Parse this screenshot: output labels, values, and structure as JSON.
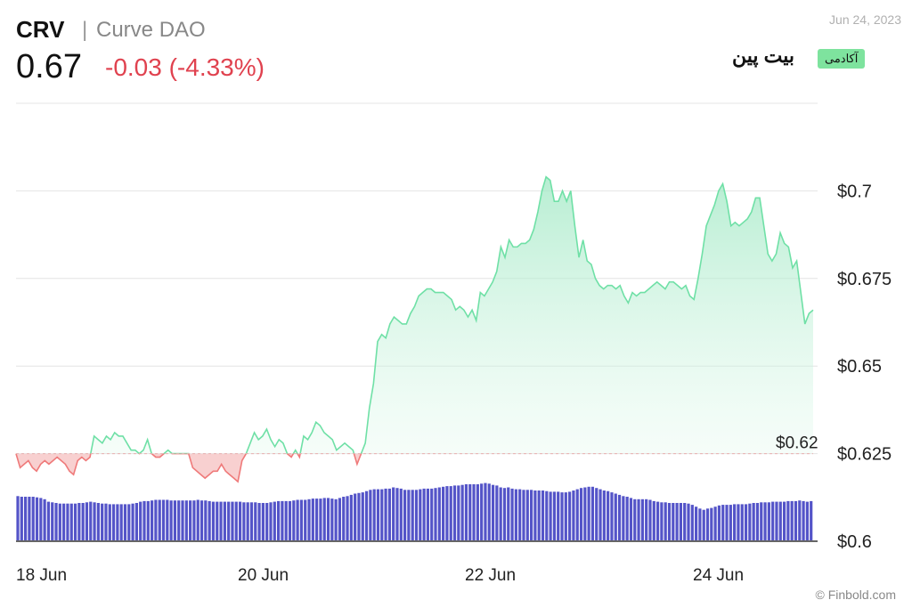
{
  "header": {
    "ticker": "CRV",
    "separator": "|",
    "name": "Curve DAO",
    "price": "0.67",
    "change": "-0.03 (-4.33%)",
    "date": "Jun 24, 2023"
  },
  "watermark": {
    "logo": "بیت پین",
    "badge": "آکادمی"
  },
  "credit": "© Finbold.com",
  "chart_data": {
    "type": "area",
    "x_tick_labels": [
      "18 Jun",
      "20 Jun",
      "22 Jun",
      "24 Jun"
    ],
    "y_tick_labels": [
      "$0.7",
      "$0.675",
      "$0.65",
      "$0.625",
      "$0.6"
    ],
    "y_ticks": [
      0.7,
      0.675,
      0.65,
      0.625,
      0.6
    ],
    "ylim": [
      0.6,
      0.725
    ],
    "baseline": 0.625,
    "baseline_label": "$0.62",
    "grid": true,
    "colors": {
      "up_line": "#6fe0a6",
      "up_fill": "#b9f0d4",
      "down_line": "#ef7a7a",
      "down_fill": "#f7c8c8",
      "volume": "#5454c8"
    },
    "price_values": [
      0.625,
      0.621,
      0.622,
      0.623,
      0.621,
      0.62,
      0.622,
      0.623,
      0.622,
      0.623,
      0.624,
      0.623,
      0.622,
      0.62,
      0.619,
      0.623,
      0.624,
      0.623,
      0.624,
      0.63,
      0.629,
      0.628,
      0.63,
      0.629,
      0.631,
      0.63,
      0.63,
      0.628,
      0.626,
      0.626,
      0.625,
      0.626,
      0.629,
      0.625,
      0.624,
      0.624,
      0.625,
      0.626,
      0.625,
      0.625,
      0.625,
      0.625,
      0.625,
      0.621,
      0.62,
      0.619,
      0.618,
      0.619,
      0.62,
      0.62,
      0.622,
      0.62,
      0.619,
      0.618,
      0.617,
      0.623,
      0.625,
      0.628,
      0.631,
      0.629,
      0.63,
      0.632,
      0.629,
      0.627,
      0.629,
      0.628,
      0.625,
      0.624,
      0.626,
      0.624,
      0.63,
      0.629,
      0.631,
      0.634,
      0.633,
      0.631,
      0.63,
      0.629,
      0.626,
      0.627,
      0.628,
      0.627,
      0.626,
      0.622,
      0.625,
      0.628,
      0.638,
      0.645,
      0.657,
      0.659,
      0.658,
      0.662,
      0.664,
      0.663,
      0.662,
      0.662,
      0.665,
      0.667,
      0.67,
      0.671,
      0.672,
      0.672,
      0.671,
      0.671,
      0.671,
      0.67,
      0.669,
      0.666,
      0.667,
      0.666,
      0.664,
      0.666,
      0.663,
      0.671,
      0.67,
      0.672,
      0.674,
      0.677,
      0.684,
      0.681,
      0.686,
      0.684,
      0.684,
      0.685,
      0.685,
      0.686,
      0.689,
      0.694,
      0.7,
      0.704,
      0.703,
      0.697,
      0.697,
      0.7,
      0.697,
      0.7,
      0.69,
      0.681,
      0.686,
      0.68,
      0.679,
      0.675,
      0.673,
      0.672,
      0.673,
      0.673,
      0.672,
      0.673,
      0.67,
      0.668,
      0.671,
      0.67,
      0.671,
      0.671,
      0.672,
      0.673,
      0.674,
      0.673,
      0.672,
      0.674,
      0.674,
      0.673,
      0.672,
      0.673,
      0.67,
      0.669,
      0.675,
      0.682,
      0.69,
      0.693,
      0.696,
      0.7,
      0.702,
      0.697,
      0.69,
      0.691,
      0.69,
      0.691,
      0.692,
      0.694,
      0.698,
      0.698,
      0.69,
      0.682,
      0.68,
      0.682,
      0.688,
      0.685,
      0.684,
      0.678,
      0.68,
      0.671,
      0.662,
      0.665,
      0.666
    ],
    "volume_values": [
      71,
      70,
      70,
      70,
      70,
      69,
      68,
      66,
      62,
      61,
      60,
      59,
      59,
      59,
      59,
      59,
      60,
      60,
      61,
      62,
      61,
      60,
      59,
      59,
      58,
      58,
      58,
      58,
      58,
      58,
      59,
      60,
      62,
      63,
      63,
      64,
      65,
      65,
      65,
      65,
      64,
      64,
      64,
      64,
      64,
      64,
      64,
      65,
      64,
      64,
      63,
      62,
      62,
      62,
      62,
      62,
      62,
      62,
      62,
      61,
      61,
      61,
      61,
      60,
      60,
      60,
      61,
      62,
      63,
      63,
      63,
      63,
      64,
      65,
      65,
      65,
      66,
      67,
      67,
      67,
      68,
      68,
      67,
      66,
      68,
      70,
      71,
      73,
      75,
      76,
      77,
      79,
      81,
      82,
      82,
      82,
      83,
      83,
      85,
      84,
      83,
      81,
      81,
      81,
      81,
      82,
      83,
      83,
      83,
      84,
      85,
      86,
      87,
      87,
      88,
      88,
      89,
      90,
      90,
      90,
      90,
      91,
      92,
      91,
      89,
      88,
      85,
      84,
      85,
      83,
      82,
      82,
      81,
      81,
      81,
      80,
      80,
      80,
      79,
      78,
      78,
      78,
      77,
      77,
      78,
      80,
      82,
      84,
      85,
      86,
      86,
      84,
      82,
      80,
      79,
      77,
      75,
      73,
      71,
      70,
      68,
      66,
      66,
      66,
      66,
      65,
      63,
      62,
      61,
      61,
      60,
      60,
      60,
      60,
      60,
      59,
      57,
      54,
      51,
      49,
      51,
      52,
      54,
      56,
      57,
      57,
      57,
      58,
      58,
      58,
      58,
      59,
      60,
      60,
      61,
      61,
      61,
      62,
      62,
      62,
      62,
      63,
      63,
      63,
      64,
      63,
      62,
      63
    ]
  }
}
